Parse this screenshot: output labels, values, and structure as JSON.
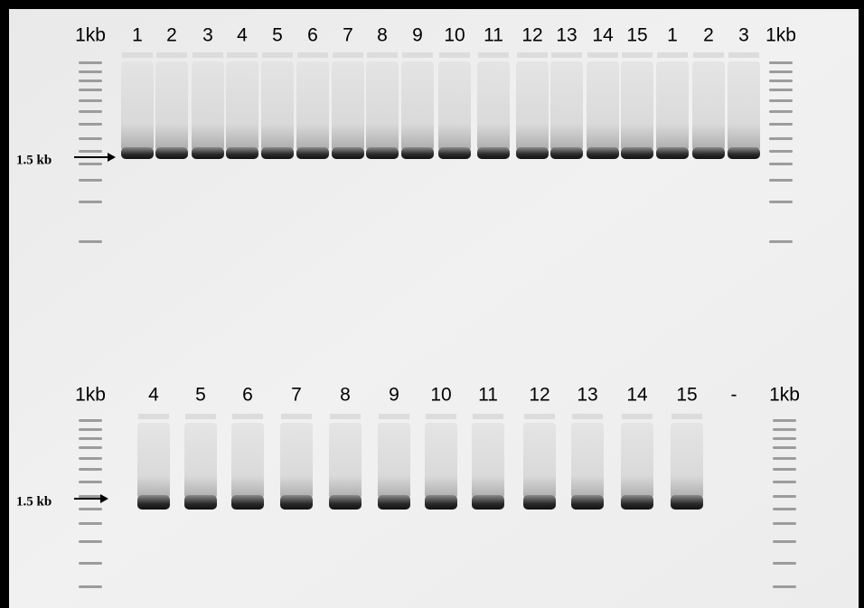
{
  "top_row": {
    "lanes": [
      "1kb",
      "1",
      "2",
      "3",
      "4",
      "5",
      "6",
      "7",
      "8",
      "9",
      "10",
      "11",
      "12",
      "13",
      "14",
      "15",
      "1",
      "2",
      "3",
      "1kb"
    ],
    "marker_label": "1.5 kb"
  },
  "bottom_row": {
    "lanes": [
      "1kb",
      "4",
      "5",
      "6",
      "7",
      "8",
      "9",
      "10",
      "11",
      "12",
      "13",
      "14",
      "15",
      "-",
      "1kb"
    ],
    "marker_label": "1.5 kb"
  }
}
